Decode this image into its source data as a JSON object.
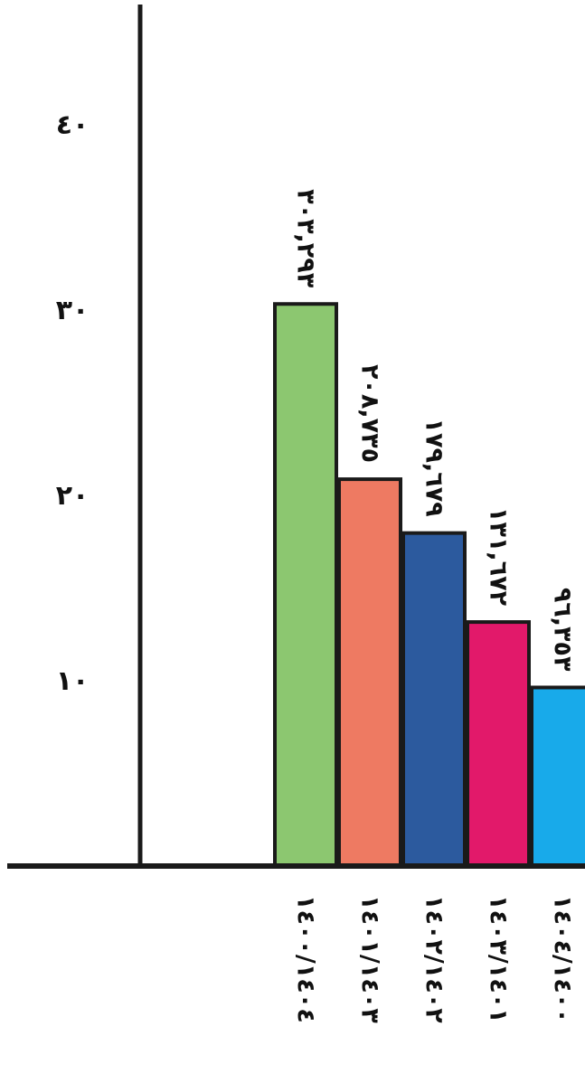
{
  "chart_data": {
    "type": "bar",
    "orientation": "vertical",
    "title": "",
    "xlabel": "",
    "ylabel": "",
    "categories": [
      "١٤٠٠/١٤٠٤",
      "١٤٠١/١٤٠٣",
      "١٤٠٢/١٤٠٢",
      "١٤٠٣/١٤٠١",
      "١٤٠٤/١٤٠٠"
    ],
    "values": [
      30.3293,
      20.8735,
      17.9679,
      13.1672,
      9.6353
    ],
    "data_labels": [
      "٣٠٣,٢٩٣",
      "٢٠٨,٧٣٥",
      "١٧٩,٦٧٩",
      "١٣١,٦٧٢",
      "٩٦,٣٥٣"
    ],
    "bar_colors": [
      "#8cc770",
      "#ee7a62",
      "#2c5a9e",
      "#e2196a",
      "#18aaea"
    ],
    "yticks": [
      10,
      20,
      30,
      40
    ],
    "ytick_labels": [
      "١٠",
      "٢٠",
      "٣٠",
      "٤٠"
    ],
    "ylim": [
      0,
      42
    ],
    "grid": false,
    "legend": "none",
    "text_rotation": "90deg clockwise (labels read top-to-bottom)"
  }
}
